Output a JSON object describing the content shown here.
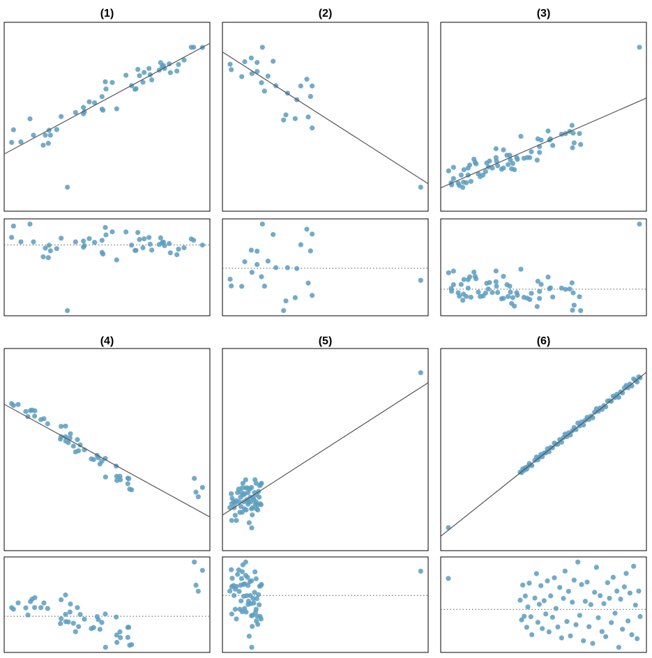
{
  "colors": {
    "point": "#5b9cbf",
    "fit_line": "#555555",
    "zero_line": "#555555",
    "frame": "#000000"
  },
  "chart_data": [
    {
      "type": "scatter",
      "title": "(1)",
      "xlim": [
        0,
        88.5
      ],
      "ylim": [
        0,
        81
      ],
      "grid": false,
      "fit_line": {
        "x": [
          0,
          88.5
        ],
        "y": [
          24.5,
          72.0
        ]
      },
      "residual_plot": true,
      "points": [
        [
          3.2,
          29.5
        ],
        [
          4.0,
          34.9
        ],
        [
          7.2,
          29.7
        ],
        [
          11.1,
          39.6
        ],
        [
          12.6,
          32.6
        ],
        [
          16.8,
          28.3
        ],
        [
          17.7,
          32.6
        ],
        [
          19.0,
          29.1
        ],
        [
          19.3,
          34.7
        ],
        [
          19.9,
          32.6
        ],
        [
          22.6,
          35.0
        ],
        [
          24.5,
          40.6
        ],
        [
          30.7,
          42.3
        ],
        [
          34.1,
          44.5
        ],
        [
          34.1,
          41.8
        ],
        [
          34.5,
          42.7
        ],
        [
          36.6,
          46.9
        ],
        [
          38.9,
          46.5
        ],
        [
          42.1,
          49.1
        ],
        [
          42.1,
          43.8
        ],
        [
          42.5,
          43.3
        ],
        [
          43.5,
          55.5
        ],
        [
          43.8,
          52.4
        ],
        [
          46.5,
          55.2
        ],
        [
          48.4,
          43.9
        ],
        [
          52.4,
          58.3
        ],
        [
          54.8,
          53.8
        ],
        [
          56.3,
          52.3
        ],
        [
          56.7,
          52.5
        ],
        [
          57.5,
          60.8
        ],
        [
          58.2,
          58.1
        ],
        [
          59.7,
          55.3
        ],
        [
          60.2,
          59.5
        ],
        [
          62.3,
          61.2
        ],
        [
          62.8,
          58.5
        ],
        [
          63.5,
          56.3
        ],
        [
          66.7,
          60.5
        ],
        [
          67.3,
          63.7
        ],
        [
          68.0,
          62.0
        ],
        [
          68.5,
          62.5
        ],
        [
          69.0,
          61.2
        ],
        [
          71.0,
          63.2
        ],
        [
          71.5,
          59.4
        ],
        [
          74.3,
          60.1
        ],
        [
          75.0,
          62.9
        ],
        [
          77.4,
          64.8
        ],
        [
          80.5,
          70.3
        ],
        [
          81.5,
          70.3
        ],
        [
          85.3,
          70.2
        ],
        [
          27.2,
          10.3
        ]
      ]
    },
    {
      "type": "scatter",
      "title": "(2)",
      "xlim": [
        0,
        88.5
      ],
      "ylim": [
        0,
        81
      ],
      "grid": false,
      "fit_line": {
        "x": [
          0,
          88.5
        ],
        "y": [
          68.3,
          11.8
        ]
      },
      "residual_plot": true,
      "points": [
        [
          3.3,
          63.0
        ],
        [
          3.8,
          60.7
        ],
        [
          8.3,
          57.7
        ],
        [
          9.6,
          64.1
        ],
        [
          12.4,
          65.7
        ],
        [
          12.7,
          59.0
        ],
        [
          14.9,
          63.8
        ],
        [
          14.9,
          59.9
        ],
        [
          17.2,
          70.3
        ],
        [
          16.8,
          55.1
        ],
        [
          18.1,
          51.5
        ],
        [
          19.6,
          57.9
        ],
        [
          21.8,
          64.3
        ],
        [
          23.0,
          53.8
        ],
        [
          28.0,
          50.6
        ],
        [
          32.0,
          47.8
        ],
        [
          33.7,
          53.7
        ],
        [
          36.3,
          56.6
        ],
        [
          38.6,
          53.7
        ],
        [
          37.9,
          49.2
        ],
        [
          27.3,
          41.3
        ],
        [
          26.3,
          39.1
        ],
        [
          31.3,
          39.7
        ],
        [
          36.9,
          40.4
        ],
        [
          38.6,
          35.7
        ],
        [
          85.3,
          10.3
        ]
      ]
    },
    {
      "type": "scatter",
      "title": "(3)",
      "xlim": [
        0,
        88.5
      ],
      "ylim": [
        0,
        81
      ],
      "grid": false,
      "fit_line": {
        "x": [
          0,
          88.5
        ],
        "y": [
          10.0,
          48.5
        ]
      },
      "residual_plot": true,
      "points": [
        [
          3.4,
          17.3
        ],
        [
          5.5,
          18.8
        ],
        [
          4.5,
          12.2
        ],
        [
          4.7,
          11.3
        ],
        [
          5.5,
          14.0
        ],
        [
          7.5,
          12.0
        ],
        [
          8.0,
          11.0
        ],
        [
          8.8,
          15.5
        ],
        [
          9.5,
          10.2
        ],
        [
          9.8,
          12.5
        ],
        [
          10.0,
          17.8
        ],
        [
          11.0,
          12.2
        ],
        [
          11.8,
          18.5
        ],
        [
          11.8,
          15.5
        ],
        [
          12.5,
          19.8
        ],
        [
          13.0,
          12.8
        ],
        [
          14.3,
          22.3
        ],
        [
          14.8,
          21.0
        ],
        [
          15.2,
          20.3
        ],
        [
          16.2,
          16.0
        ],
        [
          17.0,
          14.8
        ],
        [
          18.2,
          15.5
        ],
        [
          19.3,
          17.0
        ],
        [
          19.8,
          20.7
        ],
        [
          21.0,
          21.5
        ],
        [
          20.5,
          19.0
        ],
        [
          22.2,
          18.5
        ],
        [
          23.8,
          26.8
        ],
        [
          23.8,
          23.0
        ],
        [
          24.0,
          21.5
        ],
        [
          24.5,
          19.5
        ],
        [
          26.2,
          18.0
        ],
        [
          27.0,
          18.5
        ],
        [
          27.0,
          26.3
        ],
        [
          28.5,
          24.0
        ],
        [
          29.0,
          20.0
        ],
        [
          29.7,
          24.0
        ],
        [
          30.0,
          22.0
        ],
        [
          30.5,
          18.2
        ],
        [
          31.0,
          20.5
        ],
        [
          31.7,
          17.8
        ],
        [
          32.7,
          23.0
        ],
        [
          33.0,
          22.2
        ],
        [
          34.5,
          32.1
        ],
        [
          35.8,
          22.7
        ],
        [
          37.2,
          23.0
        ],
        [
          38.3,
          23.0
        ],
        [
          39.0,
          25.5
        ],
        [
          41.5,
          21.9
        ],
        [
          41.8,
          31.0
        ],
        [
          42.5,
          27.7
        ],
        [
          42.5,
          25.2
        ],
        [
          43.2,
          30.5
        ],
        [
          46.2,
          34.4
        ],
        [
          46.8,
          30.5
        ],
        [
          47.2,
          31.0
        ],
        [
          48.2,
          28.2
        ],
        [
          52.0,
          33.0
        ],
        [
          53.7,
          33.3
        ],
        [
          55.5,
          34.2
        ],
        [
          56.5,
          36.8
        ],
        [
          56.7,
          27.2
        ],
        [
          57.0,
          33.5
        ],
        [
          57.4,
          29.3
        ],
        [
          59.7,
          33.3
        ],
        [
          60.2,
          28.6
        ],
        [
          85.5,
          70.3
        ]
      ]
    },
    {
      "type": "scatter",
      "title": "(4)",
      "xlim": [
        0,
        88.5
      ],
      "ylim": [
        0,
        87
      ],
      "grid": false,
      "fit_line": {
        "x": [
          0,
          88.5
        ],
        "y": [
          63.0,
          14.5
        ]
      },
      "residual_plot": true,
      "points": [
        [
          3.2,
          63.3
        ],
        [
          4.0,
          62.5
        ],
        [
          6.0,
          62.9
        ],
        [
          9.3,
          59.9
        ],
        [
          10.2,
          57.7
        ],
        [
          11.3,
          60.3
        ],
        [
          12.0,
          60.5
        ],
        [
          13.2,
          60.2
        ],
        [
          13.1,
          57.9
        ],
        [
          15.8,
          56.4
        ],
        [
          17.1,
          56.8
        ],
        [
          18.7,
          54.6
        ],
        [
          24.5,
          53.5
        ],
        [
          26.4,
          53.6
        ],
        [
          24.2,
          48.0
        ],
        [
          24.5,
          49.0
        ],
        [
          26.4,
          49.0
        ],
        [
          28.5,
          50.3
        ],
        [
          28.3,
          48.5
        ],
        [
          26.5,
          47.2
        ],
        [
          27.6,
          46.5
        ],
        [
          29.8,
          45.0
        ],
        [
          30.7,
          42.5
        ],
        [
          31.5,
          47.8
        ],
        [
          32.0,
          43.0
        ],
        [
          32.7,
          45.5
        ],
        [
          34.5,
          43.4
        ],
        [
          37.5,
          39.5
        ],
        [
          38.5,
          39.2
        ],
        [
          40.0,
          41.0
        ],
        [
          40.5,
          40.0
        ],
        [
          41.2,
          37.3
        ],
        [
          42.0,
          38.5
        ],
        [
          43.5,
          39.7
        ],
        [
          48.2,
          36.4
        ],
        [
          43.6,
          31.7
        ],
        [
          48.4,
          32.0
        ],
        [
          49.8,
          32.0
        ],
        [
          48.5,
          30.2
        ],
        [
          50.0,
          30.5
        ],
        [
          53.2,
          31.2
        ],
        [
          53.6,
          31.0
        ],
        [
          53.2,
          28.8
        ],
        [
          54.0,
          26.5
        ],
        [
          54.8,
          26.2
        ],
        [
          81.8,
          31.1
        ],
        [
          85.3,
          27.2
        ],
        [
          82.5,
          25.2
        ],
        [
          83.5,
          23.2
        ]
      ]
    },
    {
      "type": "scatter",
      "title": "(5)",
      "xlim": [
        0,
        88.5
      ],
      "ylim": [
        0,
        87
      ],
      "grid": false,
      "fit_line": {
        "x": [
          0,
          88.5
        ],
        "y": [
          15.3,
          72.3
        ]
      },
      "residual_plot": true,
      "points": [
        [
          3.2,
          18.5
        ],
        [
          3.8,
          24.5
        ],
        [
          4.0,
          13.0
        ],
        [
          4.2,
          22.5
        ],
        [
          4.8,
          21.0
        ],
        [
          5.0,
          18.5
        ],
        [
          5.5,
          15.2
        ],
        [
          6.0,
          13.0
        ],
        [
          6.0,
          21.5
        ],
        [
          6.5,
          25.0
        ],
        [
          7.0,
          26.5
        ],
        [
          7.2,
          21.0
        ],
        [
          7.5,
          16.5
        ],
        [
          7.8,
          23.0
        ],
        [
          8.0,
          19.0
        ],
        [
          8.2,
          25.0
        ],
        [
          8.5,
          16.5
        ],
        [
          8.8,
          29.0
        ],
        [
          9.0,
          24.0
        ],
        [
          9.2,
          21.0
        ],
        [
          9.5,
          18.0
        ],
        [
          9.6,
          24.5
        ],
        [
          10.0,
          30.5
        ],
        [
          10.0,
          27.0
        ],
        [
          10.2,
          17.5
        ],
        [
          10.5,
          22.0
        ],
        [
          10.8,
          27.0
        ],
        [
          11.0,
          20.0
        ],
        [
          11.2,
          21.0
        ],
        [
          11.5,
          12.0
        ],
        [
          11.8,
          26.5
        ],
        [
          12.0,
          23.0
        ],
        [
          12.2,
          21.0
        ],
        [
          12.5,
          27.2
        ],
        [
          12.6,
          9.8
        ],
        [
          12.8,
          15.4
        ],
        [
          13.0,
          18.5
        ],
        [
          13.2,
          23.0
        ],
        [
          13.5,
          22.0
        ],
        [
          13.8,
          25.0
        ],
        [
          14.0,
          30.5
        ],
        [
          14.2,
          20.0
        ],
        [
          14.5,
          29.0
        ],
        [
          14.6,
          18.0
        ],
        [
          14.8,
          24.0
        ],
        [
          15.0,
          19.5
        ],
        [
          15.2,
          17.5
        ],
        [
          15.5,
          25.5
        ],
        [
          15.8,
          23.0
        ],
        [
          16.0,
          28.0
        ],
        [
          16.2,
          20.2
        ],
        [
          16.5,
          28.5
        ],
        [
          16.6,
          19.8
        ],
        [
          16.8,
          29.0
        ],
        [
          4.0,
          20.2
        ],
        [
          5.5,
          20.5
        ],
        [
          8.5,
          27.0
        ],
        [
          11.0,
          25.0
        ],
        [
          14.5,
          21.0
        ],
        [
          12.5,
          18.0
        ],
        [
          85.3,
          76.6
        ]
      ]
    },
    {
      "type": "scatter",
      "title": "(6)",
      "xlim": [
        0,
        88.5
      ],
      "ylim": [
        0,
        87
      ],
      "grid": false,
      "fit_line": {
        "x": [
          0,
          88.5
        ],
        "y": [
          6.2,
          76.8
        ]
      },
      "residual_plot": true,
      "points": [
        [
          3.3,
          9.9
        ],
        [
          34.2,
          33.8
        ],
        [
          34.8,
          33.6
        ],
        [
          35.3,
          35.2
        ],
        [
          35.9,
          34.6
        ],
        [
          36.4,
          35.7
        ],
        [
          37.0,
          35.1
        ],
        [
          37.5,
          36.2
        ],
        [
          38.1,
          37.5
        ],
        [
          38.8,
          36.9
        ],
        [
          39.2,
          36.6
        ],
        [
          40.5,
          38.9
        ],
        [
          41.2,
          40.3
        ],
        [
          41.8,
          39.1
        ],
        [
          42.4,
          40.2
        ],
        [
          43.1,
          41.4
        ],
        [
          43.7,
          40.4
        ],
        [
          44.5,
          42.0
        ],
        [
          45.2,
          42.1
        ],
        [
          45.9,
          43.8
        ],
        [
          46.6,
          42.6
        ],
        [
          47.3,
          44.4
        ],
        [
          48.1,
          44.3
        ],
        [
          48.9,
          46.3
        ],
        [
          49.6,
          45.8
        ],
        [
          50.4,
          45.8
        ],
        [
          51.2,
          47.8
        ],
        [
          52.0,
          46.7
        ],
        [
          52.8,
          48.7
        ],
        [
          53.5,
          50.2
        ],
        [
          54.3,
          49.1
        ],
        [
          55.0,
          50.7
        ],
        [
          55.8,
          49.8
        ],
        [
          56.6,
          51.6
        ],
        [
          57.4,
          53.0
        ],
        [
          58.2,
          52.1
        ],
        [
          59.0,
          54.9
        ],
        [
          59.8,
          53.7
        ],
        [
          60.6,
          55.4
        ],
        [
          61.4,
          54.1
        ],
        [
          62.2,
          56.1
        ],
        [
          63.0,
          57.4
        ],
        [
          63.8,
          56.5
        ],
        [
          64.6,
          57.9
        ],
        [
          65.4,
          57.2
        ],
        [
          66.2,
          59.6
        ],
        [
          67.0,
          61.1
        ],
        [
          67.8,
          60.0
        ],
        [
          68.6,
          61.4
        ],
        [
          69.4,
          60.8
        ],
        [
          70.2,
          62.4
        ],
        [
          71.0,
          61.9
        ],
        [
          71.8,
          64.4
        ],
        [
          72.6,
          64.5
        ],
        [
          73.4,
          64.3
        ],
        [
          74.2,
          66.5
        ],
        [
          75.0,
          65.9
        ],
        [
          75.8,
          67.3
        ],
        [
          76.6,
          66.0
        ],
        [
          77.4,
          68.3
        ],
        [
          78.2,
          67.9
        ],
        [
          79.0,
          70.0
        ],
        [
          79.8,
          71.1
        ],
        [
          80.6,
          70.1
        ],
        [
          81.4,
          71.7
        ],
        [
          82.2,
          70.9
        ],
        [
          83.0,
          73.9
        ],
        [
          83.8,
          73.2
        ],
        [
          84.5,
          72.6
        ],
        [
          85.2,
          74.8
        ],
        [
          85.8,
          74.4
        ]
      ]
    }
  ]
}
